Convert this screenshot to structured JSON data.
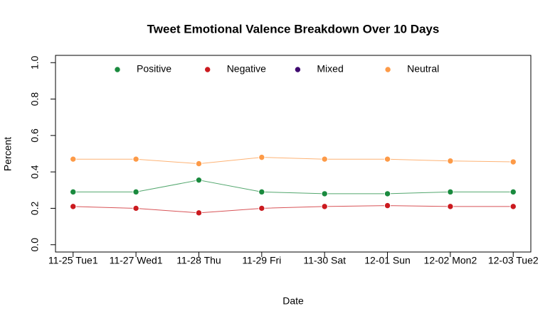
{
  "chart_data": {
    "type": "line",
    "title": "Tweet Emotional Valence Breakdown Over 10 Days",
    "x_label": "Date",
    "y_label": "Percent",
    "categories": [
      "11-25 Tue1",
      "11-27 Wed1",
      "11-28 Thu",
      "11-29 Fri",
      "11-30 Sat",
      "12-01 Sun",
      "12-02 Mon2",
      "12-03 Tue2"
    ],
    "series": [
      {
        "name": "Positive",
        "color": "#1a8a3e",
        "values": [
          0.29,
          0.29,
          0.355,
          0.29,
          0.28,
          0.28,
          0.29,
          0.29
        ]
      },
      {
        "name": "Negative",
        "color": "#cb1a1f",
        "values": [
          0.21,
          0.2,
          0.175,
          0.2,
          0.21,
          0.215,
          0.21,
          0.21
        ]
      },
      {
        "name": "Mixed",
        "color": "#3f0a70",
        "values": [
          null,
          null,
          null,
          null,
          null,
          null,
          null,
          null
        ]
      },
      {
        "name": "Neutral",
        "color": "#fd9a47",
        "values": [
          0.47,
          0.47,
          0.445,
          0.48,
          0.47,
          0.47,
          0.46,
          0.455
        ]
      }
    ],
    "ylim": [
      -0.04,
      1.04
    ],
    "yticks": [
      {
        "value": 0,
        "label": "0.0"
      },
      0.2,
      0.4,
      0.6,
      0.8,
      {
        "value": 1,
        "label": "1.0"
      }
    ],
    "legend": "top",
    "grid": false
  }
}
